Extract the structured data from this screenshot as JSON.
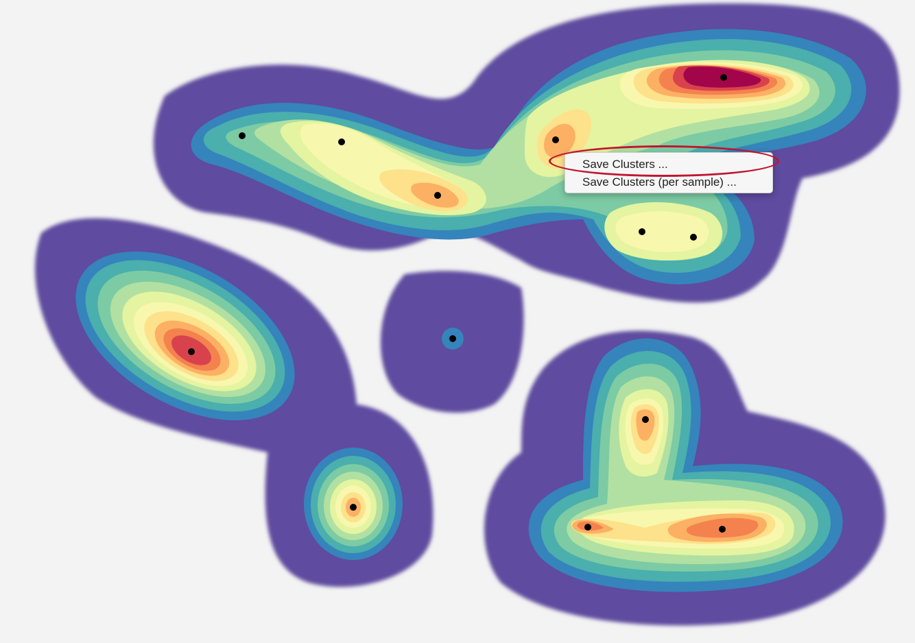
{
  "context_menu": {
    "items": [
      {
        "label": "Save Clusters ..."
      },
      {
        "label": "Save Clusters (per sample) ..."
      }
    ]
  },
  "colors": {
    "background": "#f3f3f3",
    "density_levels": [
      "#5e4c9f",
      "#3584bb",
      "#4aafad",
      "#7ccba4",
      "#b1e0a2",
      "#e4f4a0",
      "#f7f7ad",
      "#fde18b",
      "#fcb064",
      "#f4824e",
      "#d8424d",
      "#a3054a"
    ],
    "highlight": "#c0152f",
    "point": "#000000"
  }
}
